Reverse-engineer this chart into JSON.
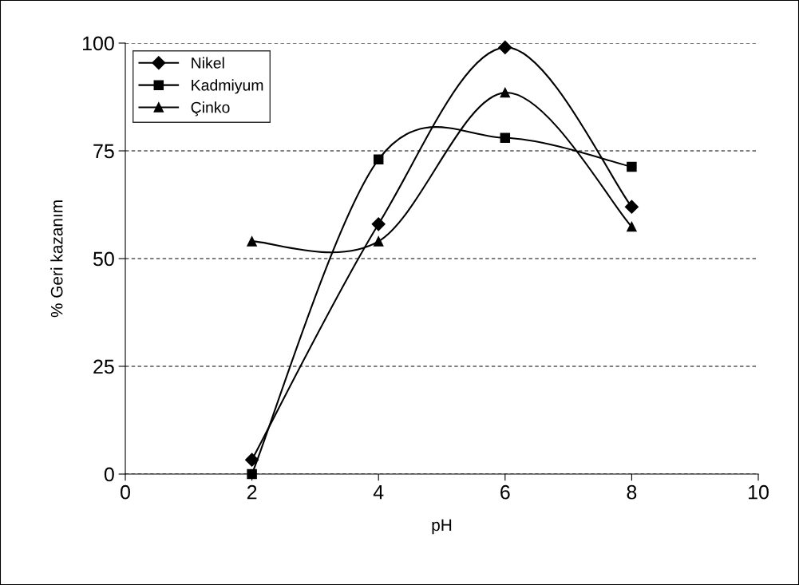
{
  "chart_data": {
    "type": "line",
    "xlabel": "pH",
    "ylabel": "% Geri kazanım",
    "x": [
      2,
      4,
      6,
      8
    ],
    "series": [
      {
        "name": "Nikel",
        "color": "#000000",
        "marker": "diamond",
        "values": [
          3.3,
          58,
          99,
          62
        ]
      },
      {
        "name": "Kadmiyum",
        "color": "#000000",
        "marker": "square",
        "values": [
          0,
          73,
          78,
          71.3
        ]
      },
      {
        "name": "Çinko",
        "color": "#000000",
        "marker": "triangle",
        "values": [
          54,
          54,
          88.5,
          57.4
        ]
      }
    ],
    "xlim": [
      0,
      10
    ],
    "xticks": [
      0,
      2,
      4,
      6,
      8,
      10
    ],
    "ylim": [
      0,
      100
    ],
    "yticks": [
      0,
      25,
      50,
      75,
      100
    ],
    "grid": "y",
    "legend": "top left",
    "line_style": "solid"
  }
}
